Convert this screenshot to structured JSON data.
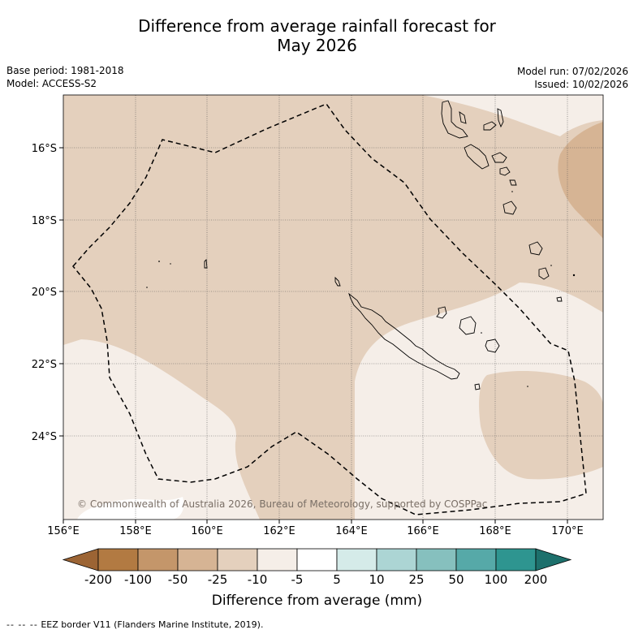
{
  "title_line1": "Difference from average rainfall forecast for",
  "title_line2": "May 2026",
  "base_period": "Base period: 1981-2018",
  "model": "Model: ACCESS-S2",
  "model_run": "Model run: 07/02/2026",
  "issued": "Issued: 10/02/2026",
  "copyright": "© Commonwealth of Australia 2026, Bureau of Meteorology, supported by COSPPac",
  "lat_labels": [
    "16°S",
    "18°S",
    "20°S",
    "22°S",
    "24°S"
  ],
  "lon_labels": [
    "156°E",
    "158°E",
    "160°E",
    "162°E",
    "164°E",
    "166°E",
    "168°E",
    "170°E"
  ],
  "colorbar": {
    "title": "Difference from average (mm)",
    "tick_labels": [
      "-200",
      "-100",
      "-50",
      "-25",
      "-10",
      "-5",
      "5",
      "10",
      "25",
      "50",
      "100",
      "200"
    ],
    "colors": [
      "#9c6434",
      "#b27a42",
      "#c4966a",
      "#d6b494",
      "#e4d0bd",
      "#f5eee8",
      "#ffffff",
      "#d5ebe9",
      "#acd5d4",
      "#86c0be",
      "#56a9a8",
      "#2e9590",
      "#1d706c"
    ]
  },
  "colors": {
    "land": "#e4d0bd",
    "light": "#f5eee8",
    "mid": "#d6b494",
    "white": "#ffffff"
  },
  "footer": {
    "symbol": "-- -- --",
    "text": "EEZ border V11 (Flanders Marine Institute, 2019)."
  }
}
